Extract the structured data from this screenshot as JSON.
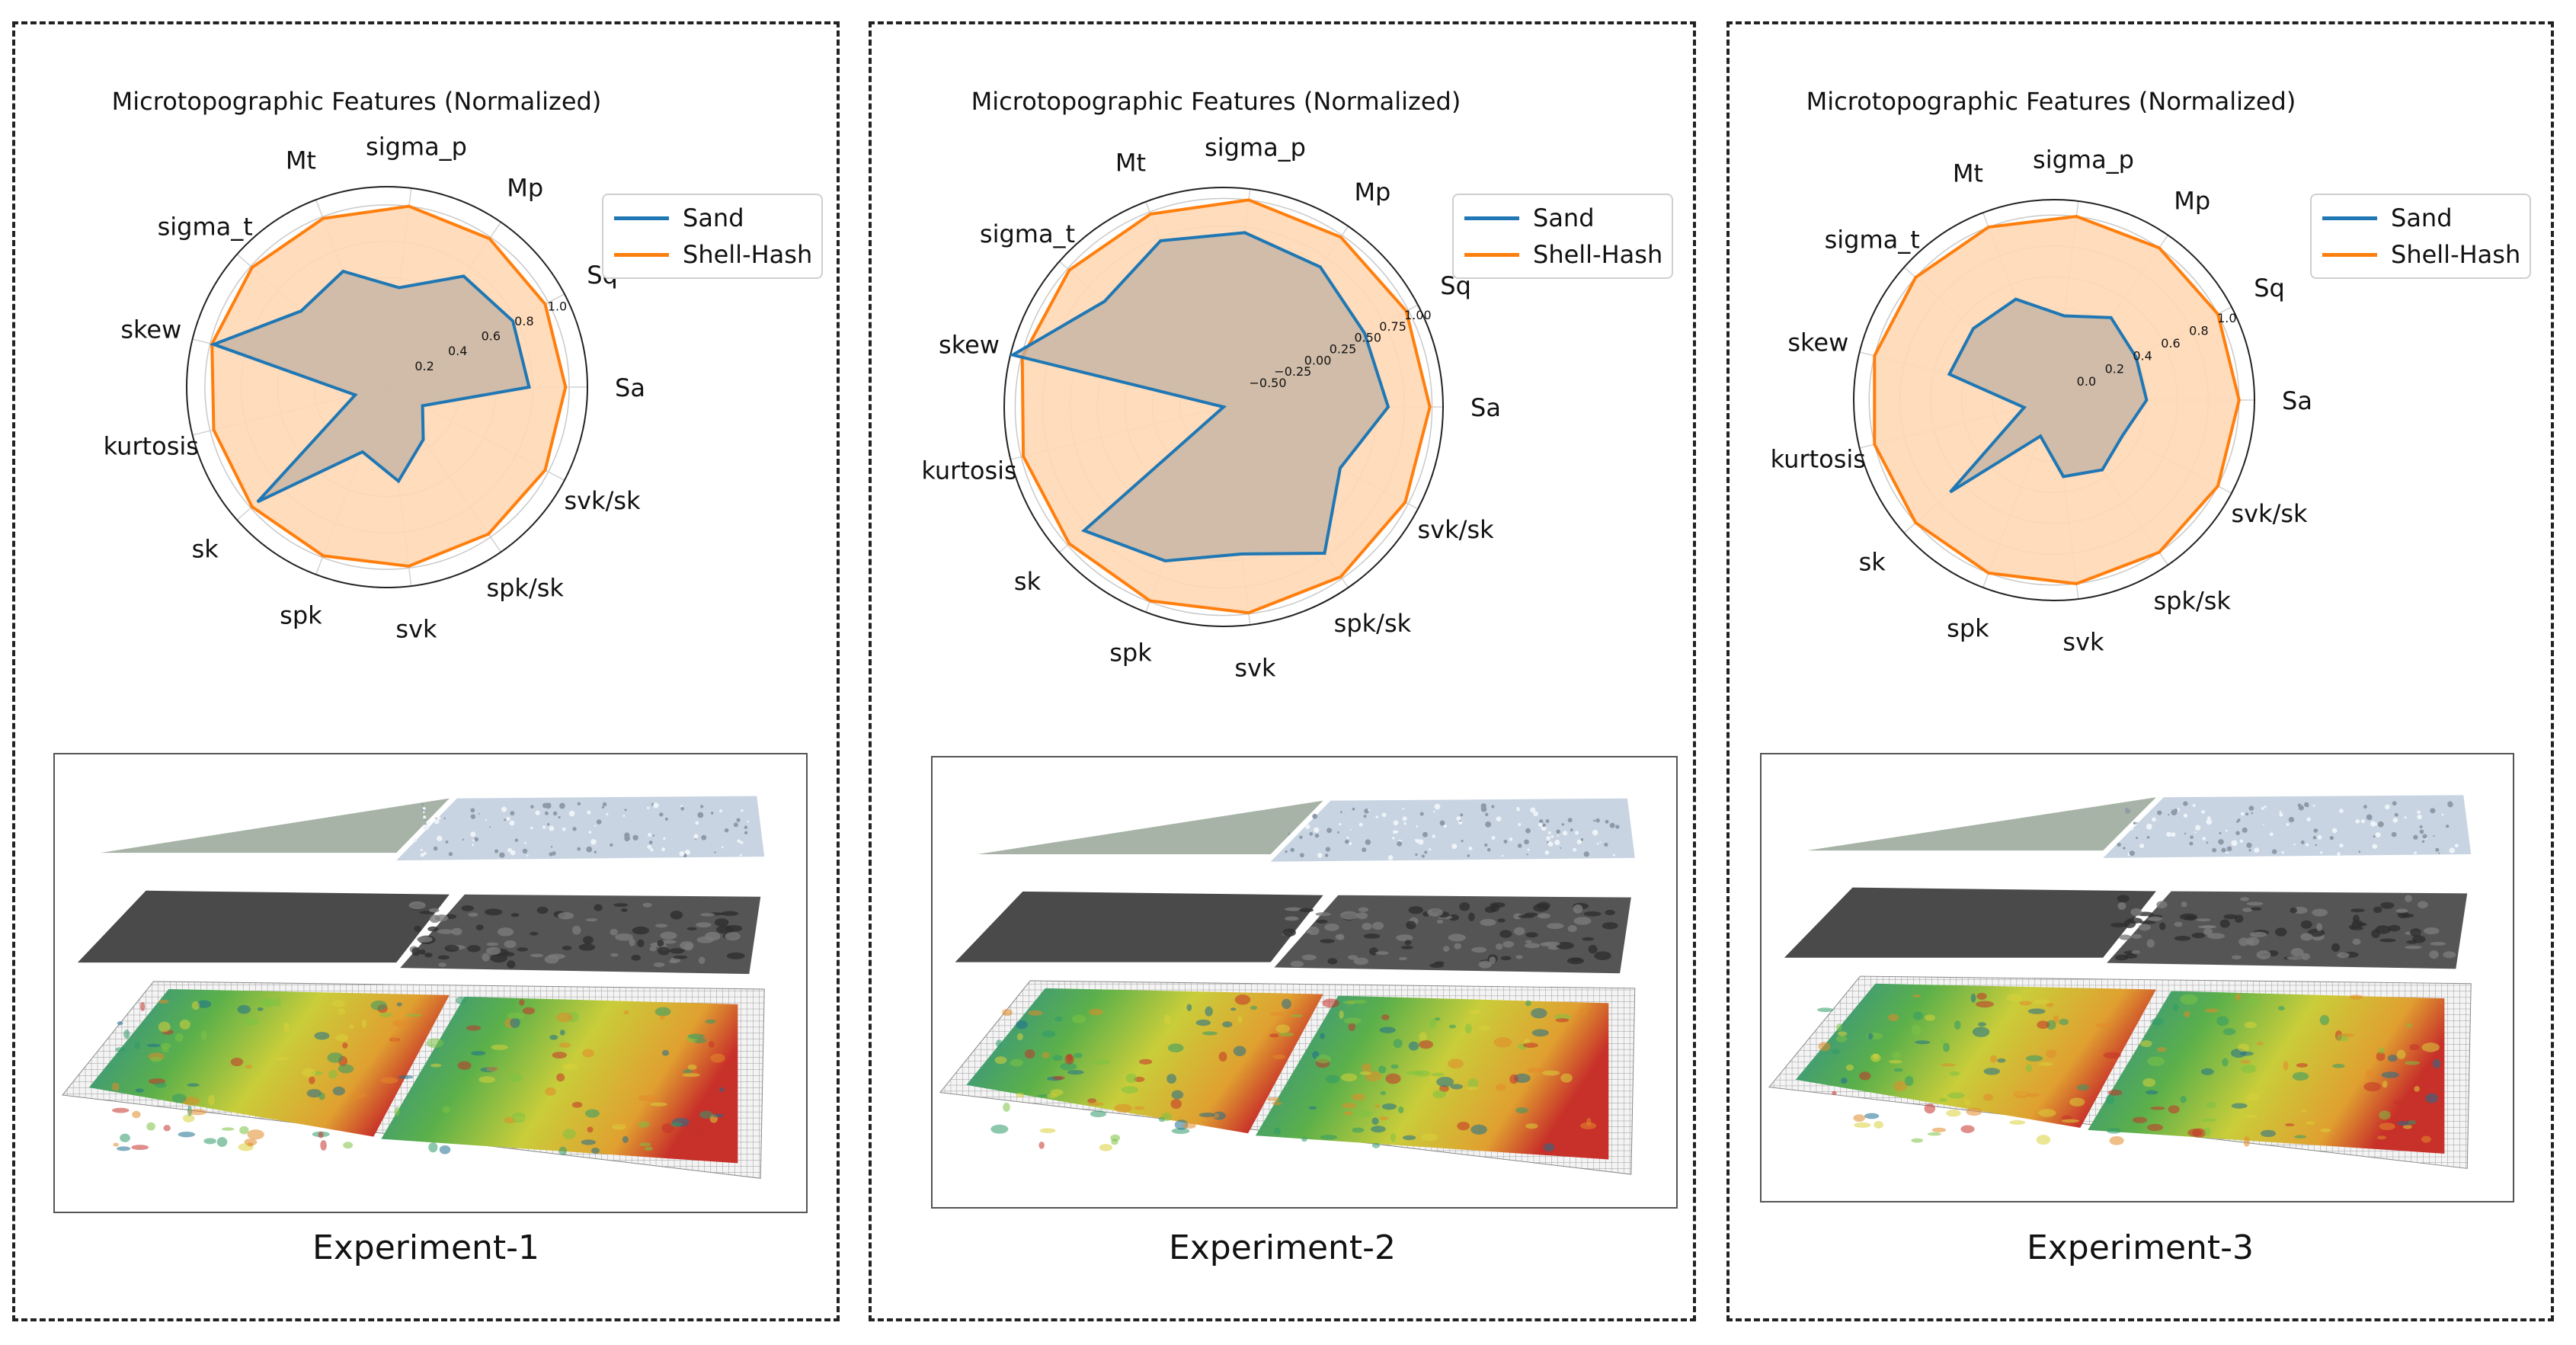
{
  "colors": {
    "sand": "#1f77b4",
    "shell_hash": "#ff7f0e",
    "shell_fill": "#ffd8b5",
    "sand_fill": "#c0b2a2"
  },
  "chart_data": [
    {
      "type": "radar",
      "title": "Microtopographic Features (Normalized)",
      "axes": [
        "Sa",
        "Sq",
        "Mp",
        "sigma_p",
        "Mt",
        "sigma_t",
        "skew",
        "kurtosis",
        "sk",
        "spk",
        "svk",
        "spk/sk",
        "svk/sk"
      ],
      "radial_ticks": [
        "0.2",
        "0.4",
        "0.6",
        "0.8",
        "1.0"
      ],
      "rlim": [
        0,
        1.1
      ],
      "legend": "right",
      "series": [
        {
          "name": "Sand",
          "values": [
            0.78,
            0.78,
            0.74,
            0.55,
            0.68,
            0.63,
            0.98,
            0.18,
            0.95,
            0.38,
            0.52,
            0.35,
            0.22
          ]
        },
        {
          "name": "Shell-Hash",
          "values": [
            0.98,
            0.98,
            0.99,
            1.0,
            0.99,
            0.99,
            0.99,
            0.98,
            0.99,
            0.99,
            0.99,
            0.98,
            0.98
          ]
        }
      ]
    },
    {
      "type": "radar",
      "title": "Microtopographic Features (Normalized)",
      "axes": [
        "Sa",
        "Sq",
        "Mp",
        "sigma_p",
        "Mt",
        "sigma_t",
        "skew",
        "kurtosis",
        "sk",
        "spk",
        "svk",
        "spk/sk",
        "svk/sk"
      ],
      "radial_ticks": [
        "−0.50",
        "−0.25",
        "0.00",
        "0.25",
        "0.50",
        "0.75",
        "1.00"
      ],
      "rlim": [
        -0.9,
        1.1
      ],
      "legend": "right",
      "series": [
        {
          "name": "Sand",
          "values": [
            0.6,
            0.55,
            0.65,
            0.7,
            0.72,
            0.55,
            1.08,
            -0.9,
            0.8,
            0.6,
            0.45,
            0.72,
            0.3
          ]
        },
        {
          "name": "Shell-Hash",
          "values": [
            0.98,
            0.98,
            0.98,
            1.0,
            0.98,
            0.98,
            0.99,
            0.98,
            0.98,
            0.99,
            0.99,
            0.98,
            0.97
          ]
        }
      ]
    },
    {
      "type": "radar",
      "title": "Microtopographic Features (Normalized)",
      "axes": [
        "Sa",
        "Sq",
        "Mp",
        "sigma_p",
        "Mt",
        "sigma_t",
        "skew",
        "kurtosis",
        "sk",
        "spk",
        "svk",
        "spk/sk",
        "svk/sk"
      ],
      "radial_ticks": [
        "0.0",
        "0.2",
        "0.4",
        "0.6",
        "0.8",
        "1.0"
      ],
      "rlim": [
        -0.2,
        1.1
      ],
      "legend": "right",
      "series": [
        {
          "name": "Sand",
          "values": [
            0.4,
            0.4,
            0.45,
            0.35,
            0.5,
            0.5,
            0.5,
            0.0,
            0.7,
            0.05,
            0.3,
            0.35,
            0.3
          ]
        },
        {
          "name": "Shell-Hash",
          "values": [
            1.0,
            1.0,
            1.0,
            1.0,
            1.0,
            1.0,
            1.0,
            1.0,
            1.0,
            1.0,
            1.0,
            1.0,
            1.0
          ]
        }
      ]
    }
  ],
  "panels": [
    {
      "caption": "Experiment-1"
    },
    {
      "caption": "Experiment-2"
    },
    {
      "caption": "Experiment-3"
    }
  ]
}
